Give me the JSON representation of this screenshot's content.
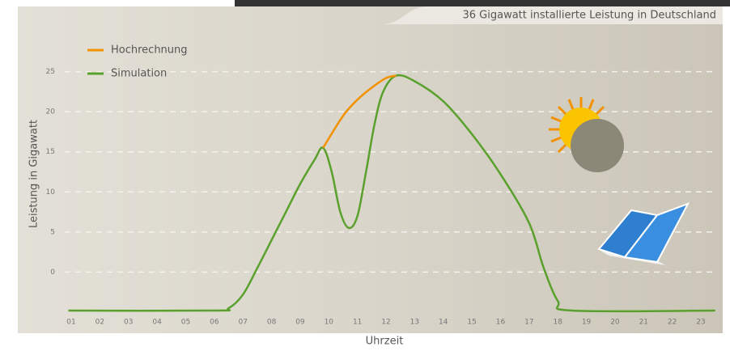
{
  "chart_data": {
    "type": "line",
    "title": "36 Gigawatt installierte Leistung in Deutschland",
    "x_label": "Uhrzeit",
    "y_label": "Leistung in Gigawatt",
    "xlim": [
      0.9,
      23.5
    ],
    "ylim": [
      -5,
      30
    ],
    "xticks": [
      {
        "value": 1,
        "label": "01"
      },
      {
        "value": 2,
        "label": "02"
      },
      {
        "value": 3,
        "label": "03"
      },
      {
        "value": 4,
        "label": "04"
      },
      {
        "value": 5,
        "label": "05"
      },
      {
        "value": 6,
        "label": "06"
      },
      {
        "value": 7,
        "label": "07"
      },
      {
        "value": 8,
        "label": "08"
      },
      {
        "value": 9,
        "label": "09"
      },
      10,
      11,
      12,
      13,
      14,
      15,
      16,
      17,
      18,
      19,
      20,
      21,
      22,
      23
    ],
    "yticks": [
      0,
      5,
      10,
      15,
      20,
      25
    ],
    "grid": true,
    "legend": "top-left",
    "series": [
      {
        "name": "Hochrechnung",
        "color": "#f39200",
        "x": [
          9.8,
          10.5,
          11,
          11.5,
          12,
          12.35
        ],
        "values": [
          15.5,
          19.5,
          21.5,
          23,
          24.2,
          24.5
        ]
      },
      {
        "name": "Simulation",
        "color": "#5aa02c",
        "x": [
          0.9,
          6,
          6.5,
          7,
          7.5,
          8,
          8.5,
          9,
          9.5,
          9.8,
          10.1,
          10.4,
          10.7,
          11,
          11.3,
          11.6,
          11.9,
          12.35,
          13,
          14,
          15,
          16,
          17,
          17.5,
          18,
          18.5,
          23.5
        ],
        "values": [
          -4.8,
          -4.8,
          -4.5,
          -2.8,
          0.5,
          4,
          7.5,
          11,
          14,
          15.5,
          12.5,
          7.5,
          5.5,
          7,
          12.5,
          18.5,
          22.5,
          24.5,
          23.8,
          21.3,
          17.2,
          12.2,
          6.1,
          0.6,
          -3.6,
          -4.8,
          -4.8
        ]
      }
    ]
  }
}
